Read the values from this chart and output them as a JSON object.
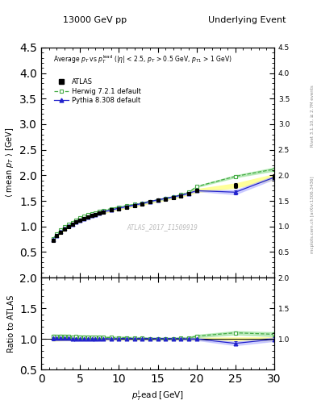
{
  "title_left": "13000 GeV pp",
  "title_right": "Underlying Event",
  "watermark": "ATLAS_2017_I1509919",
  "right_label_top": "Rivet 3.1.10, ≥ 2.7M events",
  "right_label_bottom": "mcplots.cern.ch [arXiv:1306.3436]",
  "ylim_main": [
    0.0,
    4.5
  ],
  "ylim_ratio": [
    0.5,
    2.0
  ],
  "xlim": [
    0,
    30
  ],
  "yticks_main": [
    0.5,
    1.0,
    1.5,
    2.0,
    2.5,
    3.0,
    3.5,
    4.0,
    4.5
  ],
  "yticks_ratio": [
    0.5,
    1.0,
    1.5,
    2.0
  ],
  "atlas_x": [
    1.5,
    2.0,
    2.5,
    3.0,
    3.5,
    4.0,
    4.5,
    5.0,
    5.5,
    6.0,
    6.5,
    7.0,
    7.5,
    8.0,
    9.0,
    10.0,
    11.0,
    12.0,
    13.0,
    14.0,
    15.0,
    16.0,
    17.0,
    18.0,
    19.0,
    20.0,
    25.0,
    30.0
  ],
  "atlas_y": [
    0.73,
    0.82,
    0.89,
    0.95,
    1.0,
    1.05,
    1.09,
    1.13,
    1.16,
    1.19,
    1.22,
    1.24,
    1.26,
    1.28,
    1.32,
    1.35,
    1.38,
    1.41,
    1.44,
    1.48,
    1.51,
    1.54,
    1.57,
    1.6,
    1.65,
    1.7,
    1.8,
    1.97
  ],
  "atlas_yerr": [
    0.02,
    0.02,
    0.02,
    0.02,
    0.02,
    0.02,
    0.02,
    0.02,
    0.02,
    0.02,
    0.02,
    0.02,
    0.02,
    0.02,
    0.02,
    0.02,
    0.02,
    0.02,
    0.02,
    0.02,
    0.02,
    0.02,
    0.02,
    0.02,
    0.03,
    0.03,
    0.04,
    0.05
  ],
  "atlas_color": "#000000",
  "herwig_x": [
    1.5,
    2.0,
    2.5,
    3.0,
    3.5,
    4.0,
    4.5,
    5.0,
    5.5,
    6.0,
    6.5,
    7.0,
    7.5,
    8.0,
    9.0,
    10.0,
    11.0,
    12.0,
    13.0,
    14.0,
    15.0,
    16.0,
    17.0,
    18.0,
    19.0,
    20.0,
    25.0,
    30.0
  ],
  "herwig_y": [
    0.76,
    0.85,
    0.93,
    0.99,
    1.04,
    1.08,
    1.13,
    1.17,
    1.2,
    1.23,
    1.25,
    1.27,
    1.29,
    1.31,
    1.35,
    1.38,
    1.41,
    1.43,
    1.46,
    1.49,
    1.52,
    1.55,
    1.58,
    1.62,
    1.67,
    1.78,
    1.98,
    2.12
  ],
  "herwig_yerr": [
    0.01,
    0.01,
    0.01,
    0.01,
    0.01,
    0.01,
    0.01,
    0.01,
    0.01,
    0.01,
    0.01,
    0.01,
    0.01,
    0.01,
    0.01,
    0.01,
    0.01,
    0.01,
    0.01,
    0.01,
    0.01,
    0.01,
    0.01,
    0.01,
    0.01,
    0.01,
    0.02,
    0.03
  ],
  "herwig_color": "#44aa44",
  "pythia_x": [
    1.5,
    2.0,
    2.5,
    3.0,
    3.5,
    4.0,
    4.5,
    5.0,
    5.5,
    6.0,
    6.5,
    7.0,
    7.5,
    8.0,
    9.0,
    10.0,
    11.0,
    12.0,
    13.0,
    14.0,
    15.0,
    16.0,
    17.0,
    18.0,
    19.0,
    20.0,
    25.0,
    30.0
  ],
  "pythia_y": [
    0.74,
    0.83,
    0.9,
    0.96,
    1.01,
    1.05,
    1.09,
    1.13,
    1.16,
    1.19,
    1.22,
    1.24,
    1.27,
    1.29,
    1.32,
    1.36,
    1.39,
    1.42,
    1.45,
    1.49,
    1.52,
    1.55,
    1.58,
    1.61,
    1.65,
    1.7,
    1.67,
    1.96
  ],
  "pythia_yerr": [
    0.01,
    0.01,
    0.01,
    0.01,
    0.01,
    0.01,
    0.01,
    0.01,
    0.01,
    0.01,
    0.01,
    0.01,
    0.01,
    0.01,
    0.01,
    0.01,
    0.01,
    0.01,
    0.01,
    0.01,
    0.01,
    0.01,
    0.01,
    0.01,
    0.01,
    0.01,
    0.04,
    0.03
  ],
  "pythia_color": "#2222cc",
  "atlas_band_color": "#ffff99",
  "herwig_band_color": "#88dd88",
  "pythia_band_color": "#aaaaff",
  "legend_entries": [
    "ATLAS",
    "Herwig 7.2.1 default",
    "Pythia 8.308 default"
  ]
}
